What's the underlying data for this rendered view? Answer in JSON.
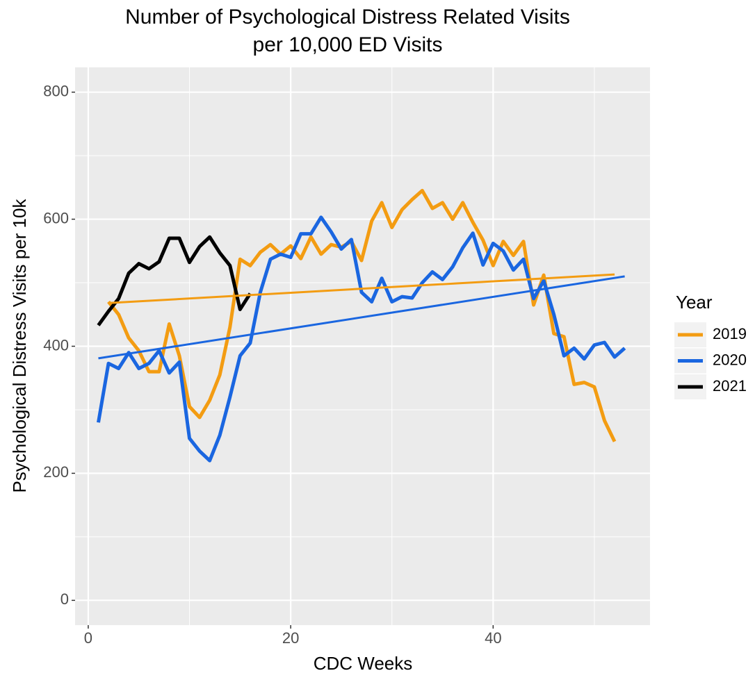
{
  "chart_data": {
    "type": "line",
    "title": "Number of Psychological Distress Related Visits",
    "subtitle": "per 10,000 ED Visits",
    "x_label": "CDC Weeks",
    "y_label": "Psychological Distress Visits per 10k",
    "legend_title": "Year",
    "xlim": [
      -1.3,
      55.5
    ],
    "xticks": [
      0,
      20,
      40
    ],
    "xminor": [
      10,
      30,
      50
    ],
    "ylim": [
      -39,
      839
    ],
    "yticks": [
      0,
      200,
      400,
      600,
      800
    ],
    "yminor": [
      100,
      300,
      500,
      700
    ],
    "grid": true,
    "legend": "right",
    "series": [
      {
        "name": "2019",
        "color": "#f39c12",
        "x": [
          2,
          3,
          4,
          5,
          6,
          7,
          8,
          9,
          10,
          11,
          12,
          13,
          14,
          15,
          16,
          17,
          18,
          19,
          20,
          21,
          22,
          23,
          24,
          25,
          26,
          27,
          28,
          29,
          30,
          31,
          32,
          33,
          34,
          35,
          36,
          37,
          38,
          39,
          40,
          41,
          42,
          43,
          44,
          45,
          46,
          47,
          48,
          49,
          50,
          51,
          52
        ],
        "values": [
          470,
          450,
          413,
          393,
          360,
          360,
          435,
          385,
          305,
          288,
          315,
          355,
          430,
          537,
          527,
          548,
          560,
          545,
          558,
          538,
          572,
          545,
          560,
          556,
          565,
          535,
          597,
          626,
          587,
          615,
          631,
          645,
          617,
          626,
          600,
          626,
          595,
          567,
          527,
          565,
          543,
          565,
          465,
          512,
          420,
          415,
          340,
          343,
          336,
          283,
          250
        ],
        "trend": {
          "x": [
            2,
            52
          ],
          "values": [
            468,
            513
          ]
        }
      },
      {
        "name": "2020",
        "color": "#1a66e0",
        "x": [
          1,
          2,
          3,
          4,
          5,
          6,
          7,
          8,
          9,
          10,
          11,
          12,
          13,
          14,
          15,
          16,
          17,
          18,
          19,
          20,
          21,
          22,
          23,
          24,
          25,
          26,
          27,
          28,
          29,
          30,
          31,
          32,
          33,
          34,
          35,
          36,
          37,
          38,
          39,
          40,
          41,
          42,
          43,
          44,
          45,
          46,
          47,
          48,
          49,
          50,
          51,
          52,
          53
        ],
        "values": [
          280,
          373,
          365,
          390,
          365,
          373,
          393,
          358,
          375,
          255,
          235,
          220,
          260,
          320,
          385,
          405,
          485,
          537,
          545,
          540,
          577,
          577,
          603,
          580,
          553,
          568,
          485,
          470,
          507,
          470,
          478,
          476,
          500,
          517,
          505,
          525,
          555,
          578,
          528,
          562,
          550,
          520,
          537,
          475,
          503,
          450,
          385,
          397,
          380,
          402,
          406,
          383,
          397
        ],
        "trend": {
          "x": [
            1,
            53
          ],
          "values": [
            381,
            510
          ]
        }
      },
      {
        "name": "2021",
        "color": "#000000",
        "x": [
          1,
          2,
          3,
          4,
          5,
          6,
          7,
          8,
          9,
          10,
          11,
          12,
          13,
          14,
          15,
          16
        ],
        "values": [
          433,
          455,
          475,
          515,
          530,
          522,
          533,
          570,
          570,
          532,
          557,
          572,
          547,
          527,
          458,
          483
        ]
      }
    ]
  }
}
